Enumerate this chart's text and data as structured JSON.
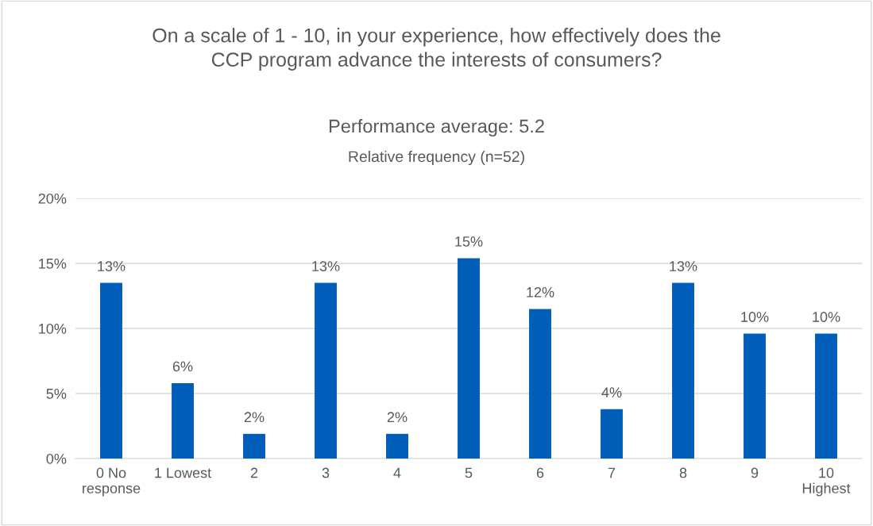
{
  "chart_data": {
    "type": "bar",
    "title": "On a scale of 1 - 10, in your experience, how effectively does the\nCCP program advance the interests of consumers?",
    "subtitle": "Performance average: 5.2",
    "annotations": [
      "Relative frequency (n=52)"
    ],
    "categories": [
      "0 No\nresponse",
      "1 Lowest",
      "2",
      "3",
      "4",
      "5",
      "6",
      "7",
      "8",
      "9",
      "10\nHighest"
    ],
    "values": [
      13.5,
      5.8,
      1.9,
      13.5,
      1.9,
      15.4,
      11.5,
      3.8,
      13.5,
      9.6,
      9.6
    ],
    "value_labels": [
      "13%",
      "6%",
      "2%",
      "13%",
      "2%",
      "15%",
      "12%",
      "4%",
      "13%",
      "10%",
      "10%"
    ],
    "color": "#005eb8",
    "ylim": [
      0,
      20
    ],
    "yticks": [
      {
        "value": 0,
        "label": "0%"
      },
      {
        "value": 5,
        "label": "5%"
      },
      {
        "value": 10,
        "label": "10%"
      },
      {
        "value": 15,
        "label": "15%"
      },
      {
        "value": 20,
        "label": "20%"
      }
    ],
    "grid": "y",
    "legend": false
  }
}
